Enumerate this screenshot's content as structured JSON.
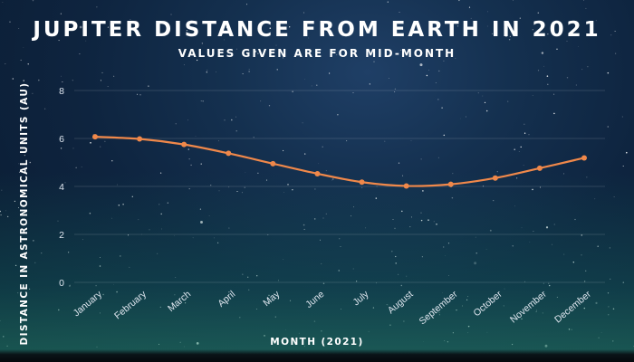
{
  "title": "JUPITER DISTANCE FROM EARTH IN 2021",
  "subtitle": "VALUES GIVEN ARE FOR MID-MONTH",
  "chart_data": {
    "type": "line",
    "title": "JUPITER DISTANCE FROM EARTH IN 2021",
    "subtitle": "VALUES GIVEN ARE FOR MID-MONTH",
    "xlabel": "MONTH (2021)",
    "ylabel": "DISTANCE IN ASTRONOMICAL UNITS (AU)",
    "categories": [
      "January",
      "February",
      "March",
      "April",
      "May",
      "June",
      "July",
      "August",
      "September",
      "October",
      "November",
      "December"
    ],
    "values": [
      6.07,
      5.98,
      5.75,
      5.38,
      4.95,
      4.53,
      4.18,
      4.02,
      4.09,
      4.35,
      4.76,
      5.19
    ],
    "ylim": [
      0,
      8
    ],
    "yticks": [
      0,
      2,
      4,
      6,
      8
    ],
    "grid": true,
    "line_color": "#f0884a"
  }
}
